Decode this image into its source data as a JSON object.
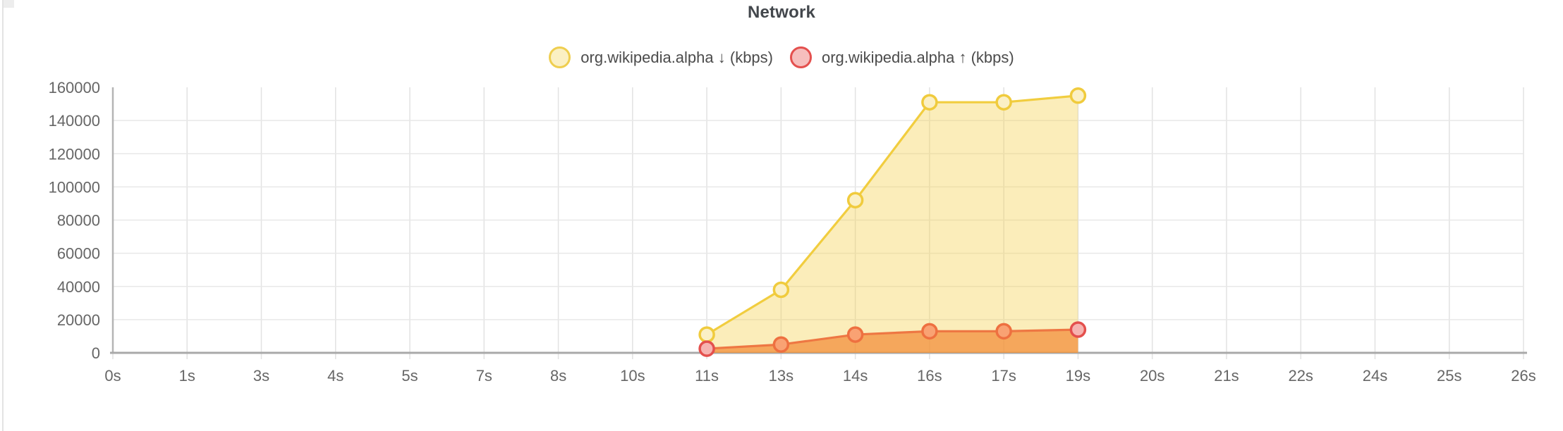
{
  "chart": {
    "title": "Network",
    "legend": [
      {
        "label": "org.wikipedia.alpha ↓ (kbps)",
        "swatch_fill": "#fbf0c3",
        "swatch_stroke": "#efce4f"
      },
      {
        "label": "org.wikipedia.alpha ↑ (kbps)",
        "swatch_fill": "#f6bebd",
        "swatch_stroke": "#e4504e"
      }
    ]
  },
  "chart_data": {
    "type": "area",
    "title": "Network",
    "xlabel": "",
    "ylabel": "",
    "categories": [
      "0s",
      "1s",
      "3s",
      "4s",
      "5s",
      "7s",
      "8s",
      "10s",
      "11s",
      "13s",
      "14s",
      "16s",
      "17s",
      "19s",
      "20s",
      "21s",
      "22s",
      "24s",
      "25s",
      "26s"
    ],
    "ylim": [
      0,
      160000
    ],
    "ytick_step": 20000,
    "ytick_labels": [
      "0",
      "20000",
      "40000",
      "60000",
      "80000",
      "100000",
      "120000",
      "140000",
      "160000"
    ],
    "grid": true,
    "legend_position": "top",
    "style": {
      "tick_color": "#666666",
      "hgrid_color": "#e8e8e8",
      "vgrid_color": "#e2e2e2",
      "yaxis_color": "#b4b4b4",
      "xaxis_color": "#a9a9a9"
    },
    "series": [
      {
        "name": "org.wikipedia.alpha ↓ (kbps)",
        "direction": "download",
        "line_color": "#f1cd3f",
        "area_color": "rgba(245, 208, 74, 0.38)",
        "marker_fill": "#fbf0c5",
        "marker_stroke": "#f0cb3d",
        "points": [
          {
            "x": "11s",
            "y": 11000
          },
          {
            "x": "13s",
            "y": 38000
          },
          {
            "x": "14s",
            "y": 92000
          },
          {
            "x": "16s",
            "y": 151000
          },
          {
            "x": "17s",
            "y": 151000
          },
          {
            "x": "19s",
            "y": 155000
          }
        ]
      },
      {
        "name": "org.wikipedia.alpha ↑ (kbps)",
        "direction": "upload",
        "line_color": "#ee7743",
        "area_color": "rgba(242, 140, 56, 0.72)",
        "marker_fill": "#f9a273",
        "marker_stroke": "#ee7040",
        "endpoint_fill": "#f6b3b0",
        "endpoint_stroke": "#e4504d",
        "points": [
          {
            "x": "11s",
            "y": 2500
          },
          {
            "x": "13s",
            "y": 5000
          },
          {
            "x": "14s",
            "y": 11000
          },
          {
            "x": "16s",
            "y": 13000
          },
          {
            "x": "17s",
            "y": 13000
          },
          {
            "x": "19s",
            "y": 14000
          }
        ]
      }
    ]
  }
}
